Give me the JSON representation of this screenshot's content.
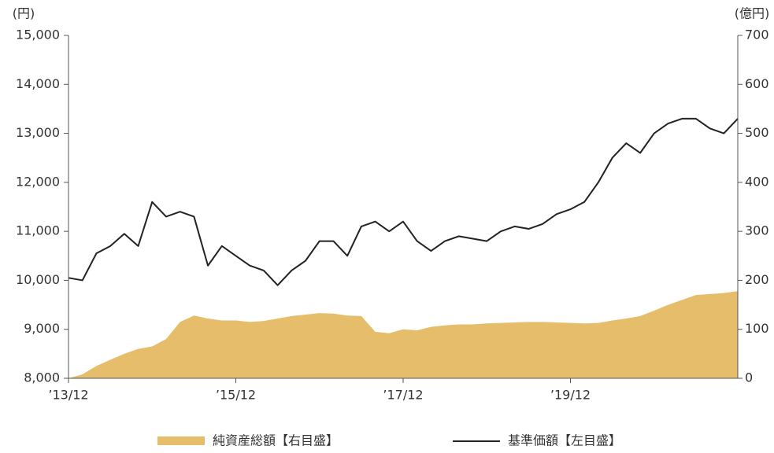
{
  "chart_data": {
    "type": "line",
    "y_unit_label": "(円)",
    "y2_unit_label": "(億円)",
    "categories": [
      "’13/12",
      null,
      null,
      null,
      null,
      null,
      null,
      null,
      null,
      null,
      null,
      null,
      "’15/12",
      null,
      null,
      null,
      null,
      null,
      null,
      null,
      null,
      null,
      null,
      null,
      "’17/12",
      null,
      null,
      null,
      null,
      null,
      null,
      null,
      null,
      null,
      null,
      null,
      "’19/12",
      null,
      null,
      null,
      null,
      null,
      null,
      null,
      null,
      null,
      null,
      null,
      null
    ],
    "ylim": [
      8000,
      15000
    ],
    "yticks": [
      {
        "value": 8000,
        "label": "8,000"
      },
      {
        "value": 9000,
        "label": "9,000"
      },
      {
        "value": 10000,
        "label": "10,000"
      },
      {
        "value": 11000,
        "label": "11,000"
      },
      {
        "value": 12000,
        "label": "12,000"
      },
      {
        "value": 13000,
        "label": "13,000"
      },
      {
        "value": 14000,
        "label": "14,000"
      },
      {
        "value": 15000,
        "label": "15,000"
      }
    ],
    "y2lim": [
      0,
      700
    ],
    "y2ticks": [
      0,
      100,
      200,
      300,
      400,
      500,
      600,
      700
    ],
    "series": [
      {
        "name": "純資産総額【右目盛】",
        "type": "area",
        "axis": "y2",
        "color": "#e6bd6a",
        "values": [
          0,
          8,
          25,
          38,
          50,
          60,
          65,
          80,
          115,
          128,
          122,
          118,
          118,
          115,
          117,
          122,
          127,
          130,
          133,
          132,
          128,
          127,
          95,
          92,
          100,
          98,
          105,
          108,
          110,
          110,
          112,
          113,
          114,
          115,
          115,
          114,
          113,
          112,
          113,
          118,
          122,
          127,
          138,
          150,
          160,
          170,
          172,
          174,
          178
        ]
      },
      {
        "name": "基準価額【左目盛】",
        "type": "line",
        "color": "#222222",
        "values": [
          10050,
          10000,
          10550,
          10700,
          10950,
          10700,
          11600,
          11300,
          11400,
          11300,
          10300,
          10700,
          10500,
          10300,
          10200,
          9900,
          10200,
          10400,
          10800,
          10800,
          10500,
          11100,
          11200,
          11000,
          11200,
          10800,
          10600,
          10800,
          10900,
          10850,
          10800,
          11000,
          11100,
          11050,
          11150,
          11350,
          11450,
          11600,
          12000,
          12500,
          12800,
          12600,
          13000,
          13200,
          13300,
          13300,
          13100,
          13000,
          13300
        ]
      }
    ]
  }
}
